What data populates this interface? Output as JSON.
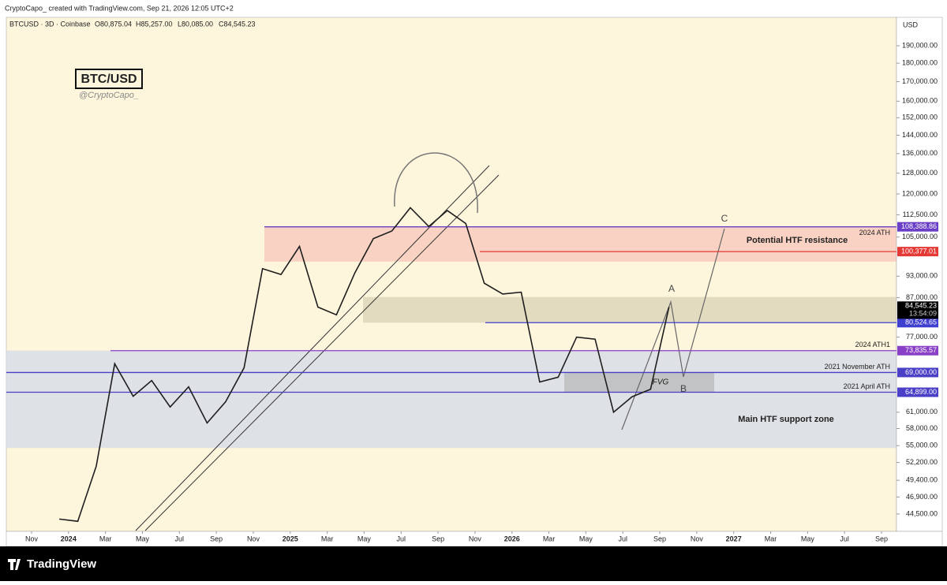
{
  "header": {
    "credit": "CryptoCapo_ created with TradingView.com, Sep 21, 2026 12:05 UTC+2",
    "symbol": "BTCUSD · 3D · Coinbase",
    "open": "O80,875.04",
    "high": "H85,257.00",
    "low": "L80,085.00",
    "close": "C84,545.23"
  },
  "chart_data": {
    "type": "line",
    "title": "BTC/USD",
    "subtitle": "@CryptoCapo_",
    "y_unit": "USD",
    "log_scale": true,
    "color": "#1e1e1e",
    "x": [
      "2023-12",
      "2024-01",
      "2024-02",
      "2024-03",
      "2024-04",
      "2024-05",
      "2024-06",
      "2024-07",
      "2024-08",
      "2024-09",
      "2024-10",
      "2024-11",
      "2024-12",
      "2025-01",
      "2025-02",
      "2025-03",
      "2025-04",
      "2025-05",
      "2025-06",
      "2025-07",
      "2025-08",
      "2025-09",
      "2025-10",
      "2025-11",
      "2025-12",
      "2026-01",
      "2026-02",
      "2026-03",
      "2026-04",
      "2026-05",
      "2026-06",
      "2026-07",
      "2026-08",
      "2026-09"
    ],
    "values": [
      43800,
      43500,
      51600,
      70900,
      64100,
      67300,
      62000,
      66000,
      59000,
      63000,
      70000,
      95200,
      93500,
      102000,
      84500,
      82500,
      94000,
      104500,
      107000,
      115000,
      108500,
      114000,
      109500,
      91000,
      88000,
      88500,
      67000,
      68000,
      77000,
      76500,
      61000,
      64000,
      65500,
      84545.23
    ],
    "ylim": [
      42160,
      207500
    ],
    "yticks": [
      {
        "value": 190000,
        "label": "190,000.00"
      },
      {
        "value": 180000,
        "label": "180,000.00"
      },
      {
        "value": 170000,
        "label": "170,000.00"
      },
      {
        "value": 160000,
        "label": "160,000.00"
      },
      {
        "value": 152000,
        "label": "152,000.00"
      },
      {
        "value": 144000,
        "label": "144,000.00"
      },
      {
        "value": 136000,
        "label": "136,000.00"
      },
      {
        "value": 128000,
        "label": "128,000.00"
      },
      {
        "value": 120000,
        "label": "120,000.00"
      },
      {
        "value": 112500,
        "label": "112,500.00"
      },
      {
        "value": 105000,
        "label": "105,000.00"
      },
      {
        "value": 93000,
        "label": "93,000.00"
      },
      {
        "value": 87000,
        "label": "87,000.00"
      },
      {
        "value": 77000,
        "label": "77,000.00"
      },
      {
        "value": 61000,
        "label": "61,000.00"
      },
      {
        "value": 58000,
        "label": "58,000.00"
      },
      {
        "value": 55000,
        "label": "55,000.00"
      },
      {
        "value": 52200,
        "label": "52,200.00"
      },
      {
        "value": 49400,
        "label": "49,400.00"
      },
      {
        "value": 46900,
        "label": "46,900.00"
      },
      {
        "value": 44500,
        "label": "44,500.00"
      }
    ],
    "xticks": [
      {
        "value": "2023-11",
        "label": "Nov"
      },
      {
        "value": "2024-01",
        "label": "2024"
      },
      {
        "value": "2024-03",
        "label": "Mar"
      },
      {
        "value": "2024-05",
        "label": "May"
      },
      {
        "value": "2024-07",
        "label": "Jul"
      },
      {
        "value": "2024-09",
        "label": "Sep"
      },
      {
        "value": "2024-11",
        "label": "Nov"
      },
      {
        "value": "2025-01",
        "label": "2025"
      },
      {
        "value": "2025-03",
        "label": "Mar"
      },
      {
        "value": "2025-05",
        "label": "May"
      },
      {
        "value": "2025-07",
        "label": "Jul"
      },
      {
        "value": "2025-09",
        "label": "Sep"
      },
      {
        "value": "2025-11",
        "label": "Nov"
      },
      {
        "value": "2026-01",
        "label": "2026"
      },
      {
        "value": "2026-03",
        "label": "Mar"
      },
      {
        "value": "2026-05",
        "label": "May"
      },
      {
        "value": "2026-07",
        "label": "Jul"
      },
      {
        "value": "2026-09",
        "label": "Sep"
      },
      {
        "value": "2026-11",
        "label": "Nov"
      },
      {
        "value": "2027-01",
        "label": "2027"
      },
      {
        "value": "2027-03",
        "label": "Mar"
      },
      {
        "value": "2027-05",
        "label": "May"
      },
      {
        "value": "2027-07",
        "label": "Jul"
      },
      {
        "value": "2027-09",
        "label": "Sep"
      }
    ],
    "zones": [
      {
        "name": "Potential HTF resistance",
        "from": 97300,
        "to": 108388.86,
        "color": "#f7c6bb"
      },
      {
        "from": 80524.65,
        "to": 87200,
        "color": "#d9d1b6"
      },
      {
        "name": "Main HTF support zone",
        "from": 54600,
        "to": 73835.57,
        "color": "#d3dae8"
      },
      {
        "name": "FVG",
        "from": 64899,
        "to": 69000,
        "color": "#b8b8b8"
      }
    ],
    "levels": [
      {
        "name": "2024 ATH",
        "value": 108388.86,
        "label": "108,388.86",
        "color": "#6a3fc7"
      },
      {
        "value": 100377.01,
        "label": "100,377.01",
        "color": "#e53935"
      },
      {
        "value": 80524.65,
        "label": "80,524.65",
        "color": "#3f3fd0"
      },
      {
        "name": "2024 ATH1",
        "value": 73835.57,
        "label": "73,835.57",
        "color": "#8a3fc7"
      },
      {
        "name": "2021 November ATH",
        "value": 69000,
        "label": "69,000.00",
        "color": "#4a3fc7"
      },
      {
        "name": "2021 April ATH",
        "value": 64899,
        "label": "64,899.00",
        "color": "#4a3fc7"
      }
    ],
    "last_price": {
      "value": 84545.23,
      "label": "84,545.23",
      "countdown": "13:54:09"
    },
    "wave_labels": [
      "A",
      "B",
      "C"
    ]
  },
  "footer": {
    "brand": "TradingView"
  }
}
